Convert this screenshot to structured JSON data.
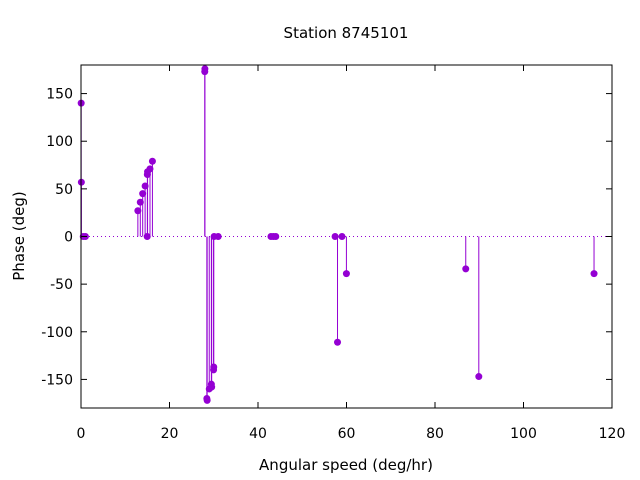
{
  "chart_data": {
    "type": "scatter",
    "title": "Station 8745101",
    "xlabel": "Angular speed (deg/hr)",
    "ylabel": "Phase (deg)",
    "xlim": [
      0,
      120
    ],
    "ylim": [
      -180,
      180
    ],
    "xticks": [
      0,
      20,
      40,
      60,
      80,
      100,
      120
    ],
    "yticks": [
      -150,
      -100,
      -50,
      0,
      50,
      100,
      150
    ],
    "grid": false,
    "zero_line": "dotted",
    "style": "impulses-with-points",
    "marker_color": "#9400d3",
    "series": [
      {
        "x": [
          0.04,
          0.08,
          0.5,
          1.0,
          12.85,
          13.4,
          13.94,
          14.49,
          14.96,
          15.0,
          15.04,
          15.59,
          16.14,
          27.97,
          28.0,
          28.44,
          28.51,
          28.98,
          29.46,
          29.53,
          29.96,
          30.0,
          30.08,
          31.0,
          42.93,
          43.48,
          44.02,
          57.42,
          57.97,
          58.98,
          59.98,
          86.95,
          89.9,
          115.94
        ],
        "y": [
          140,
          57,
          0,
          0,
          27,
          36,
          45,
          53,
          0,
          65,
          68,
          71,
          79,
          173,
          176,
          -170,
          -172,
          -160,
          -155,
          -158,
          -140,
          -137,
          0,
          0,
          0,
          0,
          0,
          0,
          -111,
          0,
          -39,
          -34,
          -147,
          -39
        ]
      }
    ]
  }
}
